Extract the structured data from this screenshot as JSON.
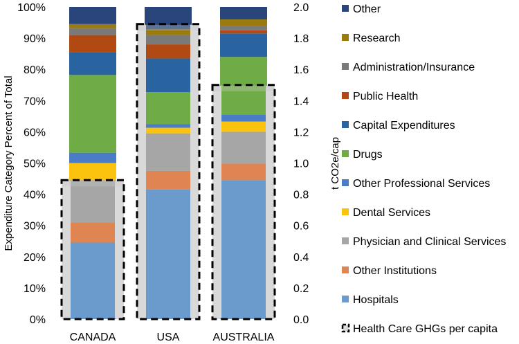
{
  "chart_data": {
    "type": "bar",
    "stacked": true,
    "categories": [
      "CANADA",
      "USA",
      "AUSTRALIA"
    ],
    "ylabel": "Expenditure Category Percent of Total",
    "y2label": "t CO2e/cap",
    "ylim": [
      0,
      100
    ],
    "y2lim": [
      0,
      2.0
    ],
    "y_ticks": [
      "0%",
      "10%",
      "20%",
      "30%",
      "40%",
      "50%",
      "60%",
      "70%",
      "80%",
      "90%",
      "100%"
    ],
    "y2_ticks": [
      "0.0",
      "0.2",
      "0.4",
      "0.6",
      "0.8",
      "1.0",
      "1.2",
      "1.4",
      "1.6",
      "1.8",
      "2.0"
    ],
    "series": [
      {
        "name": "Hospitals",
        "color": "#6a9bcc",
        "values": [
          24.5,
          41.5,
          44.5
        ]
      },
      {
        "name": "Other Institutions",
        "color": "#df8551",
        "values": [
          6.5,
          6.0,
          5.3
        ]
      },
      {
        "name": "Physician and Clinical Services",
        "color": "#a6a6a6",
        "values": [
          13.5,
          12.0,
          10.2
        ]
      },
      {
        "name": "Dental Services",
        "color": "#fbc30e",
        "values": [
          5.5,
          1.8,
          3.3
        ]
      },
      {
        "name": "Other Professional Services",
        "color": "#4a7cc8",
        "values": [
          3.3,
          1.2,
          2.2
        ]
      },
      {
        "name": "Drugs",
        "color": "#6fac46",
        "values": [
          24.9,
          10.2,
          18.5
        ]
      },
      {
        "name": "Capital Expenditures",
        "color": "#2a64a0",
        "values": [
          7.3,
          10.8,
          7.5
        ]
      },
      {
        "name": "Public Health",
        "color": "#b14a12",
        "values": [
          5.5,
          4.5,
          1.0
        ]
      },
      {
        "name": "Administration/Insurance",
        "color": "#7a7a7a",
        "values": [
          2.2,
          3.0,
          1.5
        ]
      },
      {
        "name": "Research",
        "color": "#9b7a0e",
        "values": [
          1.3,
          1.8,
          2.0
        ]
      },
      {
        "name": "Other",
        "color": "#29457a",
        "values": [
          5.5,
          7.2,
          4.0
        ]
      }
    ],
    "ghg_series": {
      "name": "Health Care GHGs per capita",
      "values": [
        0.89,
        1.89,
        1.5
      ]
    }
  }
}
